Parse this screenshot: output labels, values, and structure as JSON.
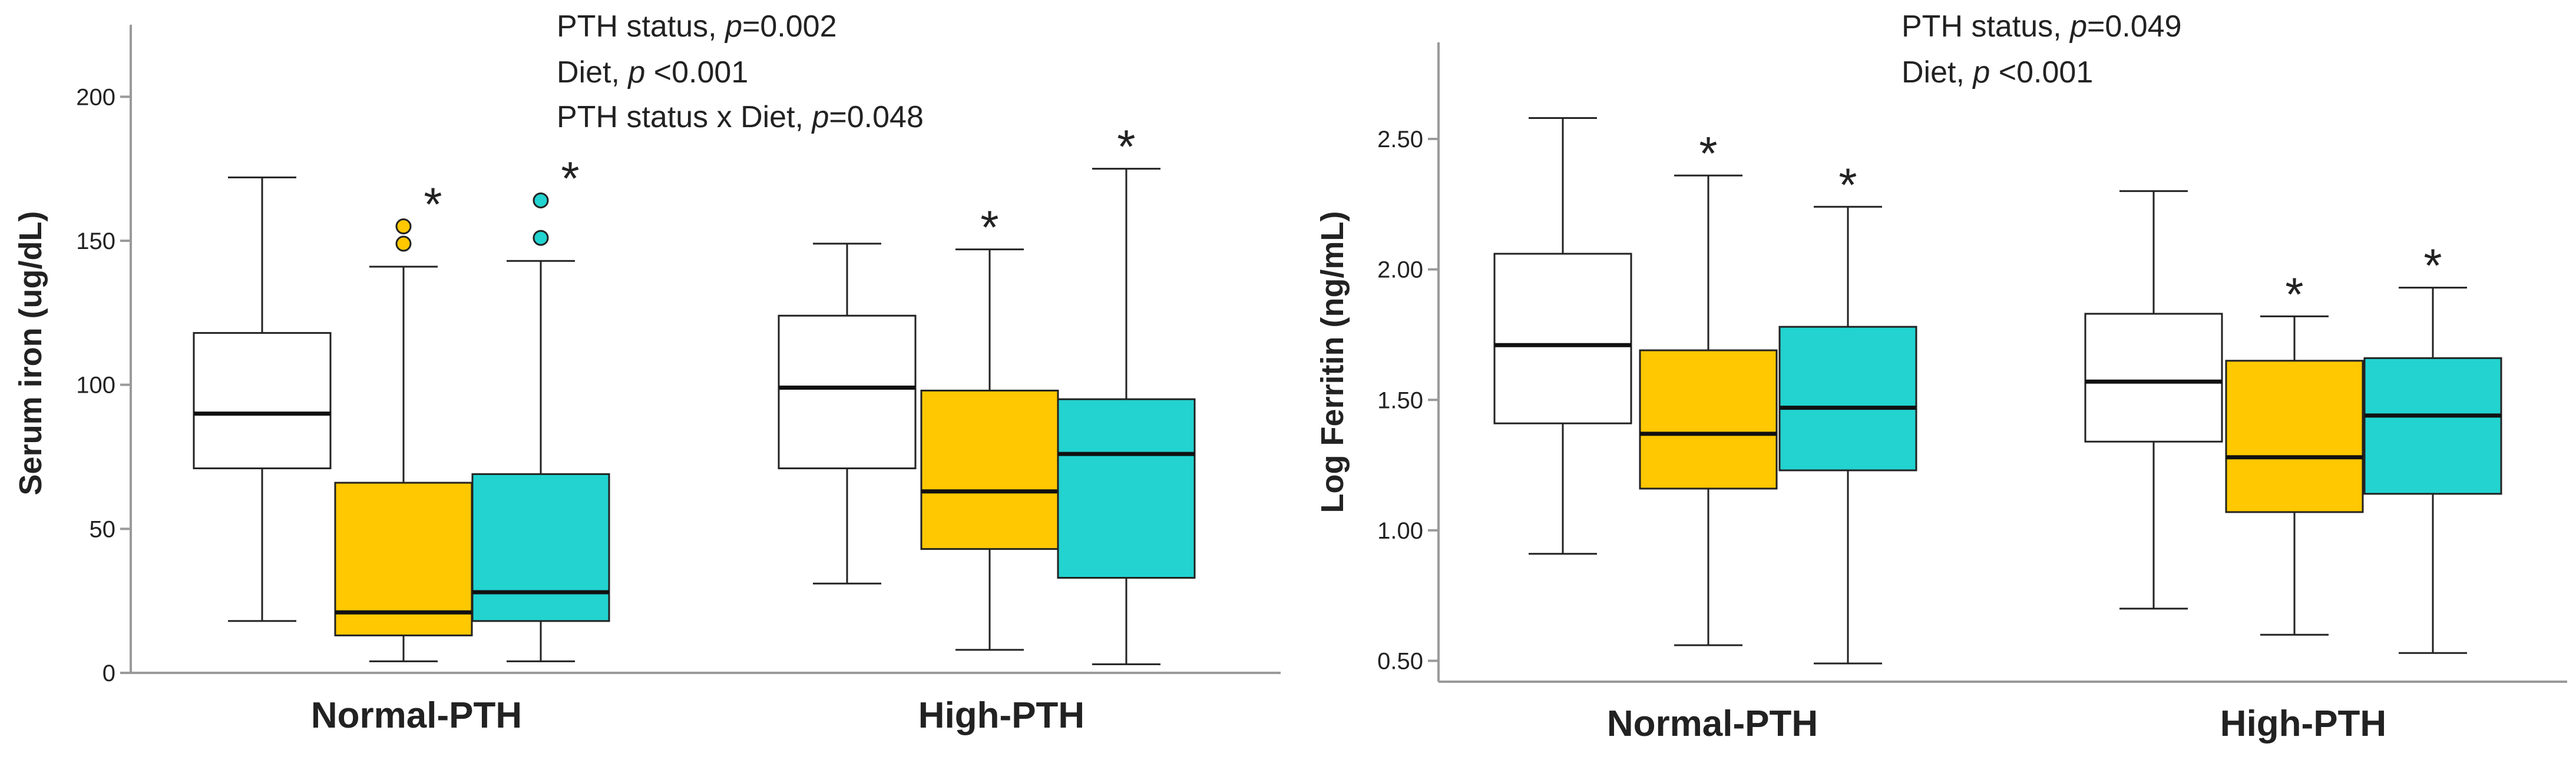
{
  "colors": {
    "control": "#ffffff",
    "diet_yellow": "#ffc800",
    "diet_teal": "#22d3d0",
    "stroke": "#222222",
    "axis": "#9a9a9a"
  },
  "chart_data": [
    {
      "type": "box",
      "title": "",
      "xlabel": "",
      "ylabel": "Serum iron (ug/dL)",
      "ylim": [
        0,
        225
      ],
      "yticks": [
        0,
        50,
        100,
        150,
        200
      ],
      "ytick_labels": [
        "0",
        "50",
        "100",
        "150",
        "200"
      ],
      "grid": false,
      "annotations": [
        {
          "id": "pth",
          "text": "PTH status, ",
          "p": "p",
          "tail": "=0.002"
        },
        {
          "id": "diet",
          "text": "Diet, ",
          "p": "p",
          "tail": " <0.001"
        },
        {
          "id": "inter",
          "text": "PTH status x Diet, ",
          "p": "p",
          "tail": "=0.048"
        }
      ],
      "categories": [
        "Normal-PTH",
        "High-PTH"
      ],
      "groups": [
        {
          "category": "Normal-PTH",
          "boxes": [
            {
              "color_key": "control",
              "whisker_low": 18,
              "q1": 71,
              "median": 90,
              "q3": 118,
              "whisker_high": 172,
              "outliers": [],
              "asterisk": ""
            },
            {
              "color_key": "diet_yellow",
              "whisker_low": 4,
              "q1": 13,
              "median": 21,
              "q3": 66,
              "whisker_high": 141,
              "outliers": [
                149,
                155
              ],
              "asterisk": "*"
            },
            {
              "color_key": "diet_teal",
              "whisker_low": 4,
              "q1": 18,
              "median": 28,
              "q3": 69,
              "whisker_high": 143,
              "outliers": [
                151,
                164
              ],
              "asterisk": "*"
            }
          ]
        },
        {
          "category": "High-PTH",
          "boxes": [
            {
              "color_key": "control",
              "whisker_low": 31,
              "q1": 71,
              "median": 99,
              "q3": 124,
              "whisker_high": 149,
              "outliers": [],
              "asterisk": ""
            },
            {
              "color_key": "diet_yellow",
              "whisker_low": 8,
              "q1": 43,
              "median": 63,
              "q3": 98,
              "whisker_high": 147,
              "outliers": [],
              "asterisk": "*"
            },
            {
              "color_key": "diet_teal",
              "whisker_low": 3,
              "q1": 33,
              "median": 76,
              "q3": 95,
              "whisker_high": 175,
              "outliers": [],
              "asterisk": "*"
            }
          ]
        }
      ]
    },
    {
      "type": "box",
      "title": "",
      "xlabel": "",
      "ylabel": "Log Ferritin (ng/mL)",
      "ylim": [
        0.42,
        2.87
      ],
      "yticks": [
        0.5,
        1.0,
        1.5,
        2.0,
        2.5
      ],
      "ytick_labels": [
        "0.50",
        "1.00",
        "1.50",
        "2.00",
        "2.50"
      ],
      "grid": false,
      "annotations": [
        {
          "id": "pth",
          "text": "PTH status, ",
          "p": "p",
          "tail": "=0.049"
        },
        {
          "id": "diet",
          "text": "Diet, ",
          "p": "p",
          "tail": " <0.001"
        }
      ],
      "categories": [
        "Normal-PTH",
        "High-PTH"
      ],
      "groups": [
        {
          "category": "Normal-PTH",
          "boxes": [
            {
              "color_key": "control",
              "whisker_low": 0.91,
              "q1": 1.41,
              "median": 1.71,
              "q3": 2.06,
              "whisker_high": 2.58,
              "outliers": [],
              "asterisk": ""
            },
            {
              "color_key": "diet_yellow",
              "whisker_low": 0.56,
              "q1": 1.16,
              "median": 1.37,
              "q3": 1.69,
              "whisker_high": 2.36,
              "outliers": [],
              "asterisk": "*"
            },
            {
              "color_key": "diet_teal",
              "whisker_low": 0.49,
              "q1": 1.23,
              "median": 1.47,
              "q3": 1.78,
              "whisker_high": 2.24,
              "outliers": [],
              "asterisk": "*"
            }
          ]
        },
        {
          "category": "High-PTH",
          "boxes": [
            {
              "color_key": "control",
              "whisker_low": 0.7,
              "q1": 1.34,
              "median": 1.57,
              "q3": 1.83,
              "whisker_high": 2.3,
              "outliers": [],
              "asterisk": ""
            },
            {
              "color_key": "diet_yellow",
              "whisker_low": 0.6,
              "q1": 1.07,
              "median": 1.28,
              "q3": 1.65,
              "whisker_high": 1.82,
              "outliers": [],
              "asterisk": "*"
            },
            {
              "color_key": "diet_teal",
              "whisker_low": 0.53,
              "q1": 1.14,
              "median": 1.44,
              "q3": 1.66,
              "whisker_high": 1.93,
              "outliers": [],
              "asterisk": "*"
            }
          ]
        }
      ]
    }
  ]
}
